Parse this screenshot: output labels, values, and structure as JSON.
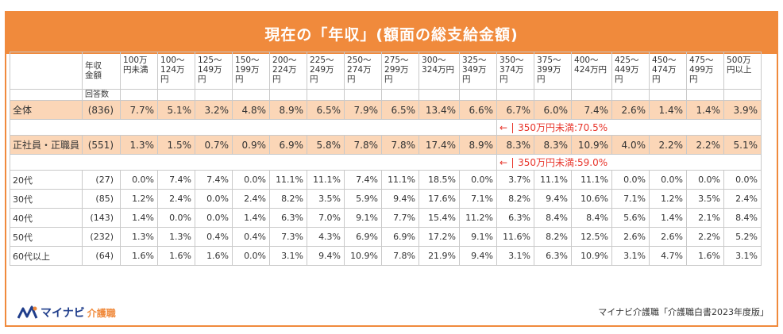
{
  "title": "現在の「年収」(額面の総支給金額)",
  "headers": {
    "count_label": "年収\n金額",
    "respondents_label": "回答数",
    "brackets": [
      "100万\n円未満",
      "100～\n124万\n円",
      "125～\n149万\n円",
      "150～\n199万\n円",
      "200～\n224万\n円",
      "225～\n249万\n円",
      "250～\n274万\n円",
      "275～\n299万\n円",
      "300～\n324万円",
      "325～\n349万\n円",
      "350～\n374万\n円",
      "375～\n399万\n円",
      "400～\n424万円",
      "425～\n449万\n円",
      "450～\n474万\n円",
      "475～\n499万\n円",
      "500万\n円以上"
    ]
  },
  "rows": [
    {
      "label": "全体",
      "n": "(836)",
      "values": [
        "7.7%",
        "5.1%",
        "3.2%",
        "4.8%",
        "8.9%",
        "6.5%",
        "7.9%",
        "6.5%",
        "13.4%",
        "6.6%",
        "6.7%",
        "6.0%",
        "7.4%",
        "2.6%",
        "1.4%",
        "1.4%",
        "3.9%"
      ]
    },
    {
      "label": "正社員・正職員",
      "n": "(551)",
      "values": [
        "1.3%",
        "1.5%",
        "0.7%",
        "0.9%",
        "6.9%",
        "5.8%",
        "7.8%",
        "7.8%",
        "17.4%",
        "8.9%",
        "8.3%",
        "8.3%",
        "10.9%",
        "4.0%",
        "2.2%",
        "2.2%",
        "5.1%"
      ]
    },
    {
      "label": "20代",
      "n": "(27)",
      "values": [
        "0.0%",
        "7.4%",
        "7.4%",
        "0.0%",
        "11.1%",
        "11.1%",
        "7.4%",
        "11.1%",
        "18.5%",
        "0.0%",
        "3.7%",
        "11.1%",
        "11.1%",
        "0.0%",
        "0.0%",
        "0.0%",
        "0.0%"
      ]
    },
    {
      "label": "30代",
      "n": "(85)",
      "values": [
        "1.2%",
        "2.4%",
        "0.0%",
        "2.4%",
        "8.2%",
        "3.5%",
        "5.9%",
        "9.4%",
        "17.6%",
        "7.1%",
        "8.2%",
        "9.4%",
        "10.6%",
        "7.1%",
        "1.2%",
        "3.5%",
        "2.4%"
      ]
    },
    {
      "label": "40代",
      "n": "(143)",
      "values": [
        "1.4%",
        "0.0%",
        "0.0%",
        "1.4%",
        "6.3%",
        "7.0%",
        "9.1%",
        "7.7%",
        "15.4%",
        "11.2%",
        "6.3%",
        "8.4%",
        "8.4%",
        "5.6%",
        "1.4%",
        "2.1%",
        "8.4%"
      ]
    },
    {
      "label": "50代",
      "n": "(232)",
      "values": [
        "1.3%",
        "1.3%",
        "0.4%",
        "0.4%",
        "7.3%",
        "4.3%",
        "6.9%",
        "6.9%",
        "17.2%",
        "9.1%",
        "11.6%",
        "8.2%",
        "12.5%",
        "2.6%",
        "2.6%",
        "2.2%",
        "5.2%"
      ]
    },
    {
      "label": "60代以上",
      "n": "(64)",
      "values": [
        "1.6%",
        "1.6%",
        "1.6%",
        "0.0%",
        "3.1%",
        "9.4%",
        "10.9%",
        "7.8%",
        "21.9%",
        "9.4%",
        "3.1%",
        "6.3%",
        "10.9%",
        "3.1%",
        "4.7%",
        "1.6%",
        "3.1%"
      ]
    }
  ],
  "notes": {
    "total": {
      "arrow": "←",
      "text": "350万円未満:70.5%"
    },
    "staff": {
      "arrow": "←",
      "text": "350万円未満:59.0%"
    }
  },
  "footer": {
    "logo_text": "マイナビ",
    "logo_sub": "介護職",
    "source": "マイナビ介護職「介護職白書2023年度版」"
  },
  "colors": {
    "accent": "#f08a3c",
    "highlight_row": "#fbd6b7",
    "note": "#e8352b",
    "brand_blue": "#1f3d8b"
  }
}
